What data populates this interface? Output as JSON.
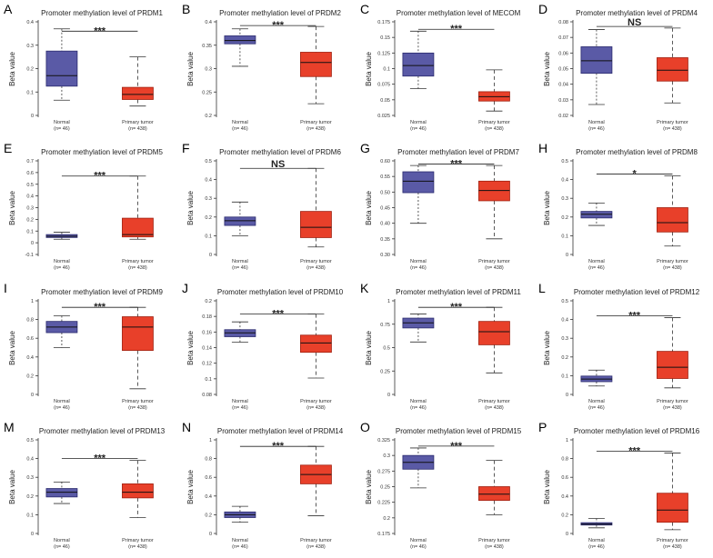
{
  "figure": {
    "colors": {
      "normal_fill": "#5a5aa6",
      "normal_stroke": "#2a2a6e",
      "tumor_fill": "#e8402a",
      "tumor_stroke": "#a02010",
      "axis": "#333333"
    }
  },
  "chart_data": [
    {
      "letter": "A",
      "type": "box",
      "title": "Promoter methylation level of PRDM1",
      "ylabel": "Beta value",
      "ylim": [
        0,
        0.4
      ],
      "ticks": [
        0,
        0.1,
        0.2,
        0.3,
        0.4
      ],
      "tick_labels": [
        "0",
        "0.1",
        "0.2",
        "0.3",
        "0.4"
      ],
      "groups": [
        {
          "name": "Normal",
          "n": "(n= 46)",
          "min": 0.065,
          "q1": 0.125,
          "median": 0.17,
          "q3": 0.275,
          "max": 0.37
        },
        {
          "name": "Primary tumor",
          "n": "(n= 438)",
          "min": 0.04,
          "q1": 0.068,
          "median": 0.09,
          "q3": 0.12,
          "max": 0.25
        }
      ],
      "sig": "***",
      "sig_y": 0.36
    },
    {
      "letter": "B",
      "type": "box",
      "title": "Promoter methylation level of PRDM2",
      "ylabel": "Beta value",
      "ylim": [
        0.2,
        0.4
      ],
      "ticks": [
        0.2,
        0.25,
        0.3,
        0.35,
        0.4
      ],
      "tick_labels": [
        "0.2",
        "0.25",
        "0.3",
        "0.35",
        "0.4"
      ],
      "groups": [
        {
          "name": "Normal",
          "n": "(n= 46)",
          "min": 0.305,
          "q1": 0.353,
          "median": 0.36,
          "q3": 0.37,
          "max": 0.385
        },
        {
          "name": "Primary tumor",
          "n": "(n= 438)",
          "min": 0.225,
          "q1": 0.283,
          "median": 0.313,
          "q3": 0.335,
          "max": 0.39
        }
      ],
      "sig": "***",
      "sig_y": 0.392
    },
    {
      "letter": "C",
      "type": "box",
      "title": "Promoter methylation level of MECOM",
      "ylabel": "Beta value",
      "ylim": [
        0.025,
        0.175
      ],
      "ticks": [
        0.025,
        0.05,
        0.075,
        0.1,
        0.125,
        0.15,
        0.175
      ],
      "tick_labels": [
        "0.025",
        "0.05",
        "0.075",
        "0.1",
        "0.125",
        "0.15",
        "0.175"
      ],
      "groups": [
        {
          "name": "Normal",
          "n": "(n= 46)",
          "min": 0.068,
          "q1": 0.088,
          "median": 0.105,
          "q3": 0.125,
          "max": 0.16
        },
        {
          "name": "Primary tumor",
          "n": "(n= 438)",
          "min": 0.032,
          "q1": 0.048,
          "median": 0.055,
          "q3": 0.063,
          "max": 0.098
        }
      ],
      "sig": "***",
      "sig_y": 0.163
    },
    {
      "letter": "D",
      "type": "box",
      "title": "Promoter methylation level of PRDM4",
      "ylabel": "Beta value",
      "ylim": [
        0.02,
        0.08
      ],
      "ticks": [
        0.02,
        0.03,
        0.04,
        0.05,
        0.06,
        0.07,
        0.08
      ],
      "tick_labels": [
        "0.02",
        "0.03",
        "0.04",
        "0.05",
        "0.06",
        "0.07",
        "0.08"
      ],
      "groups": [
        {
          "name": "Normal",
          "n": "(n= 46)",
          "min": 0.027,
          "q1": 0.047,
          "median": 0.055,
          "q3": 0.064,
          "max": 0.075
        },
        {
          "name": "Primary tumor",
          "n": "(n= 438)",
          "min": 0.028,
          "q1": 0.042,
          "median": 0.049,
          "q3": 0.057,
          "max": 0.076
        }
      ],
      "sig": "NS",
      "sig_y": 0.077
    },
    {
      "letter": "E",
      "type": "box",
      "title": "Promoter methylation level of PRDM5",
      "ylabel": "Beta value",
      "ylim": [
        -0.1,
        0.7
      ],
      "ticks": [
        -0.1,
        0,
        0.1,
        0.2,
        0.3,
        0.4,
        0.5,
        0.6,
        0.7
      ],
      "tick_labels": [
        "-0.1",
        "0",
        "0.1",
        "0.2",
        "0.3",
        "0.4",
        "0.5",
        "0.6",
        "0.7"
      ],
      "groups": [
        {
          "name": "Normal",
          "n": "(n= 46)",
          "min": 0.03,
          "q1": 0.045,
          "median": 0.055,
          "q3": 0.07,
          "max": 0.09
        },
        {
          "name": "Primary tumor",
          "n": "(n= 438)",
          "min": 0.03,
          "q1": 0.05,
          "median": 0.07,
          "q3": 0.21,
          "max": 0.57
        }
      ],
      "sig": "***",
      "sig_y": 0.57
    },
    {
      "letter": "F",
      "type": "box",
      "title": "Promoter methylation level of PRDM6",
      "ylabel": "Beta value",
      "ylim": [
        0,
        0.5
      ],
      "ticks": [
        0,
        0.1,
        0.2,
        0.3,
        0.4,
        0.5
      ],
      "tick_labels": [
        "0",
        "0.1",
        "0.2",
        "0.3",
        "0.4",
        "0.5"
      ],
      "groups": [
        {
          "name": "Normal",
          "n": "(n= 46)",
          "min": 0.1,
          "q1": 0.155,
          "median": 0.18,
          "q3": 0.2,
          "max": 0.28
        },
        {
          "name": "Primary tumor",
          "n": "(n= 438)",
          "min": 0.04,
          "q1": 0.09,
          "median": 0.145,
          "q3": 0.23,
          "max": 0.46
        }
      ],
      "sig": "NS",
      "sig_y": 0.46
    },
    {
      "letter": "G",
      "type": "box",
      "title": "Promoter methylation level of PRDM7",
      "ylabel": "Beta value",
      "ylim": [
        0.3,
        0.6
      ],
      "ticks": [
        0.3,
        0.35,
        0.4,
        0.45,
        0.5,
        0.55,
        0.6
      ],
      "tick_labels": [
        "0.30",
        "0.35",
        "0.40",
        "0.45",
        "0.50",
        "0.55",
        "0.60"
      ],
      "groups": [
        {
          "name": "Normal",
          "n": "(n= 46)",
          "min": 0.4,
          "q1": 0.498,
          "median": 0.535,
          "q3": 0.565,
          "max": 0.585
        },
        {
          "name": "Primary tumor",
          "n": "(n= 438)",
          "min": 0.35,
          "q1": 0.472,
          "median": 0.505,
          "q3": 0.535,
          "max": 0.585
        }
      ],
      "sig": "***",
      "sig_y": 0.59
    },
    {
      "letter": "H",
      "type": "box",
      "title": "Promoter methylation level of PRDM8",
      "ylabel": "Beta value",
      "ylim": [
        0,
        0.5
      ],
      "ticks": [
        0,
        0.1,
        0.2,
        0.3,
        0.4,
        0.5
      ],
      "tick_labels": [
        "0",
        "0.1",
        "0.2",
        "0.3",
        "0.4",
        "0.5"
      ],
      "groups": [
        {
          "name": "Normal",
          "n": "(n= 46)",
          "min": 0.155,
          "q1": 0.195,
          "median": 0.215,
          "q3": 0.23,
          "max": 0.275
        },
        {
          "name": "Primary tumor",
          "n": "(n= 438)",
          "min": 0.045,
          "q1": 0.12,
          "median": 0.17,
          "q3": 0.25,
          "max": 0.42
        }
      ],
      "sig": "*",
      "sig_y": 0.43
    },
    {
      "letter": "I",
      "type": "box",
      "title": "Promoter methylation level of PRDM9",
      "ylabel": "Beta value",
      "ylim": [
        0,
        1
      ],
      "ticks": [
        0,
        0.2,
        0.4,
        0.6,
        0.8,
        1
      ],
      "tick_labels": [
        "0",
        "0.2",
        "0.4",
        "0.6",
        "0.8",
        "1"
      ],
      "groups": [
        {
          "name": "Normal",
          "n": "(n= 46)",
          "min": 0.5,
          "q1": 0.66,
          "median": 0.72,
          "q3": 0.78,
          "max": 0.84
        },
        {
          "name": "Primary tumor",
          "n": "(n= 438)",
          "min": 0.06,
          "q1": 0.47,
          "median": 0.72,
          "q3": 0.83,
          "max": 0.93
        }
      ],
      "sig": "***",
      "sig_y": 0.93
    },
    {
      "letter": "J",
      "type": "box",
      "title": "Promoter methylation level of PRDM10",
      "ylabel": "Beta value",
      "ylim": [
        0.08,
        0.2
      ],
      "ticks": [
        0.08,
        0.1,
        0.12,
        0.14,
        0.16,
        0.18,
        0.2
      ],
      "tick_labels": [
        "0.08",
        "0.1",
        "0.12",
        "0.14",
        "0.16",
        "0.18",
        "0.2"
      ],
      "groups": [
        {
          "name": "Normal",
          "n": "(n= 46)",
          "min": 0.147,
          "q1": 0.154,
          "median": 0.159,
          "q3": 0.163,
          "max": 0.173
        },
        {
          "name": "Primary tumor",
          "n": "(n= 438)",
          "min": 0.101,
          "q1": 0.134,
          "median": 0.146,
          "q3": 0.156,
          "max": 0.183
        }
      ],
      "sig": "***",
      "sig_y": 0.183
    },
    {
      "letter": "K",
      "type": "box",
      "title": "Promoter methylation level of PRDM11",
      "ylabel": "Beta value",
      "ylim": [
        0,
        1
      ],
      "ticks": [
        0,
        0.25,
        0.5,
        0.75,
        1
      ],
      "tick_labels": [
        "0",
        "0.25",
        "0.5",
        "0.75",
        "1"
      ],
      "groups": [
        {
          "name": "Normal",
          "n": "(n= 46)",
          "min": 0.56,
          "q1": 0.71,
          "median": 0.765,
          "q3": 0.815,
          "max": 0.86
        },
        {
          "name": "Primary tumor",
          "n": "(n= 438)",
          "min": 0.23,
          "q1": 0.53,
          "median": 0.67,
          "q3": 0.78,
          "max": 0.93
        }
      ],
      "sig": "***",
      "sig_y": 0.93
    },
    {
      "letter": "L",
      "type": "box",
      "title": "Promoter methylation level of PRDM12",
      "ylabel": "Beta value",
      "ylim": [
        0,
        0.5
      ],
      "ticks": [
        0,
        0.1,
        0.2,
        0.3,
        0.4,
        0.5
      ],
      "tick_labels": [
        "0",
        "0.1",
        "0.2",
        "0.3",
        "0.4",
        "0.5"
      ],
      "groups": [
        {
          "name": "Normal",
          "n": "(n= 46)",
          "min": 0.045,
          "q1": 0.068,
          "median": 0.082,
          "q3": 0.098,
          "max": 0.13
        },
        {
          "name": "Primary tumor",
          "n": "(n= 438)",
          "min": 0.035,
          "q1": 0.085,
          "median": 0.145,
          "q3": 0.23,
          "max": 0.41
        }
      ],
      "sig": "***",
      "sig_y": 0.42
    },
    {
      "letter": "M",
      "type": "box",
      "title": "Promoter methylation level of PRDM13",
      "ylabel": "Beta value",
      "ylim": [
        0,
        0.5
      ],
      "ticks": [
        0,
        0.1,
        0.2,
        0.3,
        0.4,
        0.5
      ],
      "tick_labels": [
        "0",
        "0.1",
        "0.2",
        "0.3",
        "0.4",
        "0.5"
      ],
      "groups": [
        {
          "name": "Normal",
          "n": "(n= 46)",
          "min": 0.16,
          "q1": 0.195,
          "median": 0.22,
          "q3": 0.24,
          "max": 0.275
        },
        {
          "name": "Primary tumor",
          "n": "(n= 438)",
          "min": 0.085,
          "q1": 0.19,
          "median": 0.22,
          "q3": 0.265,
          "max": 0.39
        }
      ],
      "sig": "***",
      "sig_y": 0.4
    },
    {
      "letter": "N",
      "type": "box",
      "title": "Promoter methylation level of PRDM14",
      "ylabel": "Beta value",
      "ylim": [
        0,
        1
      ],
      "ticks": [
        0,
        0.2,
        0.4,
        0.6,
        0.8,
        1
      ],
      "tick_labels": [
        "0",
        "0.2",
        "0.4",
        "0.6",
        "0.8",
        "1"
      ],
      "groups": [
        {
          "name": "Normal",
          "n": "(n= 46)",
          "min": 0.12,
          "q1": 0.17,
          "median": 0.2,
          "q3": 0.23,
          "max": 0.29
        },
        {
          "name": "Primary tumor",
          "n": "(n= 438)",
          "min": 0.19,
          "q1": 0.53,
          "median": 0.63,
          "q3": 0.73,
          "max": 0.93
        }
      ],
      "sig": "***",
      "sig_y": 0.93
    },
    {
      "letter": "O",
      "type": "box",
      "title": "Promoter methylation level of PRDM15",
      "ylabel": "Beta value",
      "ylim": [
        0.175,
        0.325
      ],
      "ticks": [
        0.175,
        0.2,
        0.225,
        0.25,
        0.275,
        0.3,
        0.325
      ],
      "tick_labels": [
        "0.175",
        "0.2",
        "0.225",
        "0.25",
        "0.275",
        "0.3",
        "0.325"
      ],
      "groups": [
        {
          "name": "Normal",
          "n": "(n= 46)",
          "min": 0.248,
          "q1": 0.278,
          "median": 0.289,
          "q3": 0.3,
          "max": 0.312
        },
        {
          "name": "Primary tumor",
          "n": "(n= 438)",
          "min": 0.205,
          "q1": 0.228,
          "median": 0.238,
          "q3": 0.25,
          "max": 0.292
        }
      ],
      "sig": "***",
      "sig_y": 0.315
    },
    {
      "letter": "P",
      "type": "box",
      "title": "Promoter methylation level of PRDM16",
      "ylabel": "Beta value",
      "ylim": [
        0,
        1
      ],
      "ticks": [
        0,
        0.2,
        0.4,
        0.6,
        0.8,
        1
      ],
      "tick_labels": [
        "0",
        "0.2",
        "0.4",
        "0.6",
        "0.8",
        "1"
      ],
      "groups": [
        {
          "name": "Normal",
          "n": "(n= 46)",
          "min": 0.06,
          "q1": 0.09,
          "median": 0.1,
          "q3": 0.115,
          "max": 0.16
        },
        {
          "name": "Primary tumor",
          "n": "(n= 438)",
          "min": 0.04,
          "q1": 0.12,
          "median": 0.25,
          "q3": 0.43,
          "max": 0.86
        }
      ],
      "sig": "***",
      "sig_y": 0.88
    }
  ]
}
